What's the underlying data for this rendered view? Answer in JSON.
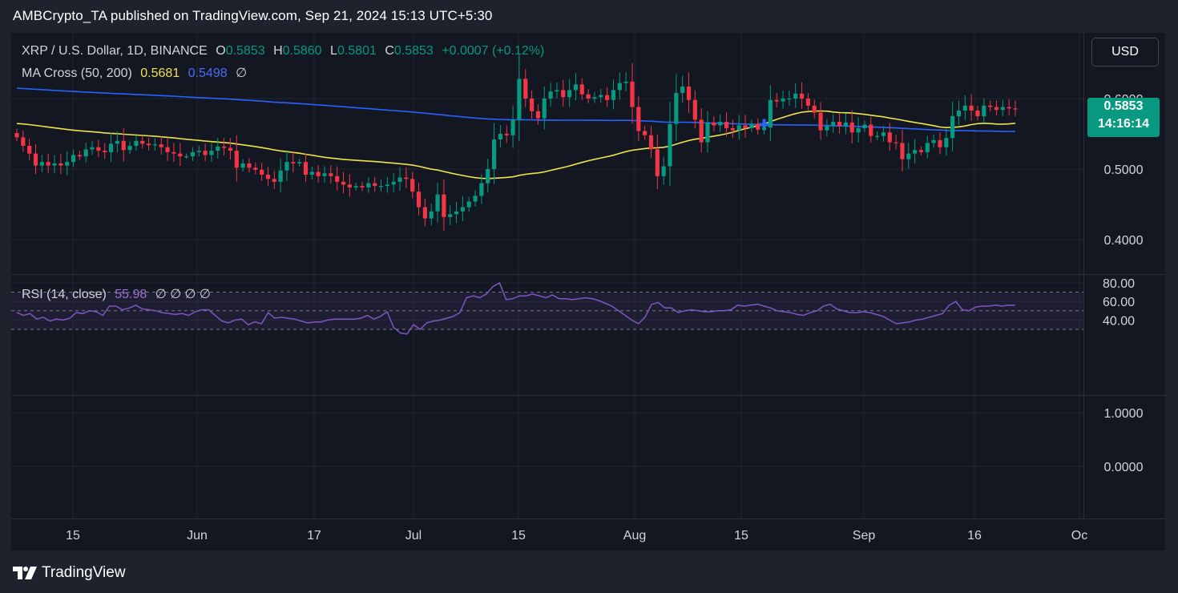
{
  "published": "AMBCrypto_TA published on TradingView.com, Sep 21, 2024 15:13 UTC+5:30",
  "footer_brand": "TradingView",
  "currency_button": "USD",
  "legend": {
    "symbol": "XRP / U.S. Dollar, 1D, BINANCE",
    "o_label": "O",
    "o_value": "0.5853",
    "h_label": "H",
    "h_value": "0.5860",
    "l_label": "L",
    "l_value": "0.5801",
    "c_label": "C",
    "c_value": "0.5853",
    "change": "+0.0007 (+0.12%)",
    "ma_name": "MA Cross (50, 200)",
    "ma50": "0.5681",
    "ma200": "0.5498",
    "ma_extra": "∅",
    "rsi_name": "RSI (14, close)",
    "rsi_value": "55.98",
    "rsi_extra": "∅ ∅ ∅ ∅"
  },
  "price_label": {
    "value": "0.5853",
    "countdown": "14:16:14"
  },
  "colors": {
    "background": "#131722",
    "up": "#089981",
    "down": "#f23645",
    "ma50": "#f2e34b",
    "ma200": "#2962ff",
    "rsi": "#7e57c2",
    "cross_marker": "#2962ff"
  },
  "chart_data": [
    {
      "type": "candlestick",
      "title": "XRP / U.S. Dollar, 1D, BINANCE",
      "x_tick_labels": [
        "15",
        "Jun",
        "17",
        "Jul",
        "15",
        "Aug",
        "15",
        "Sep",
        "16",
        "Oc"
      ],
      "y_tick_labels": [
        "0.6000",
        "0.5000",
        "0.4000"
      ],
      "ylim": [
        0.35,
        0.645
      ],
      "grid": true,
      "close_series": [
        0.545,
        0.533,
        0.522,
        0.505,
        0.51,
        0.505,
        0.508,
        0.505,
        0.51,
        0.52,
        0.518,
        0.528,
        0.531,
        0.526,
        0.524,
        0.536,
        0.54,
        0.527,
        0.533,
        0.54,
        0.536,
        0.534,
        0.535,
        0.531,
        0.524,
        0.522,
        0.518,
        0.518,
        0.524,
        0.526,
        0.52,
        0.526,
        0.532,
        0.53,
        0.526,
        0.502,
        0.508,
        0.502,
        0.499,
        0.492,
        0.486,
        0.482,
        0.498,
        0.51,
        0.508,
        0.51,
        0.492,
        0.496,
        0.49,
        0.494,
        0.49,
        0.482,
        0.478,
        0.474,
        0.476,
        0.474,
        0.48,
        0.476,
        0.476,
        0.478,
        0.482,
        0.488,
        0.486,
        0.468,
        0.446,
        0.43,
        0.44,
        0.464,
        0.432,
        0.436,
        0.44,
        0.446,
        0.454,
        0.462,
        0.48,
        0.5,
        0.542,
        0.55,
        0.548,
        0.57,
        0.628,
        0.6,
        0.582,
        0.572,
        0.6,
        0.61,
        0.612,
        0.602,
        0.612,
        0.62,
        0.606,
        0.6,
        0.602,
        0.605,
        0.598,
        0.612,
        0.622,
        0.624,
        0.588,
        0.554,
        0.548,
        0.528,
        0.49,
        0.504,
        0.564,
        0.608,
        0.617,
        0.598,
        0.57,
        0.538,
        0.566,
        0.562,
        0.567,
        0.558,
        0.555,
        0.562,
        0.558,
        0.564,
        0.556,
        0.559,
        0.598,
        0.596,
        0.6,
        0.6,
        0.607,
        0.6,
        0.59,
        0.58,
        0.555,
        0.561,
        0.567,
        0.561,
        0.566,
        0.552,
        0.558,
        0.563,
        0.547,
        0.547,
        0.552,
        0.538,
        0.537,
        0.514,
        0.522,
        0.527,
        0.524,
        0.537,
        0.541,
        0.531,
        0.544,
        0.575,
        0.583,
        0.59,
        0.583,
        0.575,
        0.59,
        0.588,
        0.584,
        0.588,
        0.586,
        0.5853
      ],
      "series": [
        {
          "name": "MA 50",
          "last": 0.5681
        },
        {
          "name": "MA 200",
          "last": 0.5498
        }
      ]
    },
    {
      "type": "line",
      "title": "RSI (14, close)",
      "y_tick_labels": [
        "80.00",
        "60.00",
        "40.00"
      ],
      "ylim": [
        20,
        85
      ],
      "bands": [
        30,
        50,
        70
      ],
      "values": [
        48,
        45,
        47,
        41,
        43,
        39,
        41,
        40,
        42,
        48,
        47,
        50,
        49,
        45,
        55,
        55,
        51,
        53,
        56,
        52,
        51,
        50,
        48,
        47,
        46,
        47,
        45,
        49,
        51,
        51,
        45,
        39,
        37,
        40,
        41,
        35,
        38,
        36,
        48,
        42,
        43,
        42,
        41,
        39,
        37,
        38,
        38,
        40,
        41,
        41,
        41,
        41,
        42,
        45,
        41,
        44,
        49,
        32,
        26,
        25,
        35,
        30,
        37,
        39,
        40,
        42,
        44,
        48,
        64,
        66,
        64,
        68,
        76,
        80,
        62,
        63,
        66,
        66,
        68,
        66,
        64,
        67,
        63,
        63,
        62,
        63,
        64,
        63,
        61,
        58,
        55,
        50,
        45,
        40,
        36,
        43,
        57,
        59,
        53,
        53,
        48,
        50,
        51,
        50,
        49,
        49,
        50,
        50,
        51,
        56,
        55,
        56,
        57,
        55,
        53,
        50,
        49,
        48,
        46,
        45,
        48,
        50,
        55,
        57,
        52,
        50,
        48,
        48,
        49,
        48,
        46,
        44,
        40,
        36,
        37,
        38,
        40,
        41,
        43,
        45,
        47,
        56,
        60,
        51,
        50,
        54,
        55,
        55,
        56,
        55,
        56,
        55.98
      ]
    },
    {
      "type": "line",
      "title": "",
      "y_tick_labels": [
        "1.0000",
        "0.0000"
      ],
      "values": []
    }
  ]
}
